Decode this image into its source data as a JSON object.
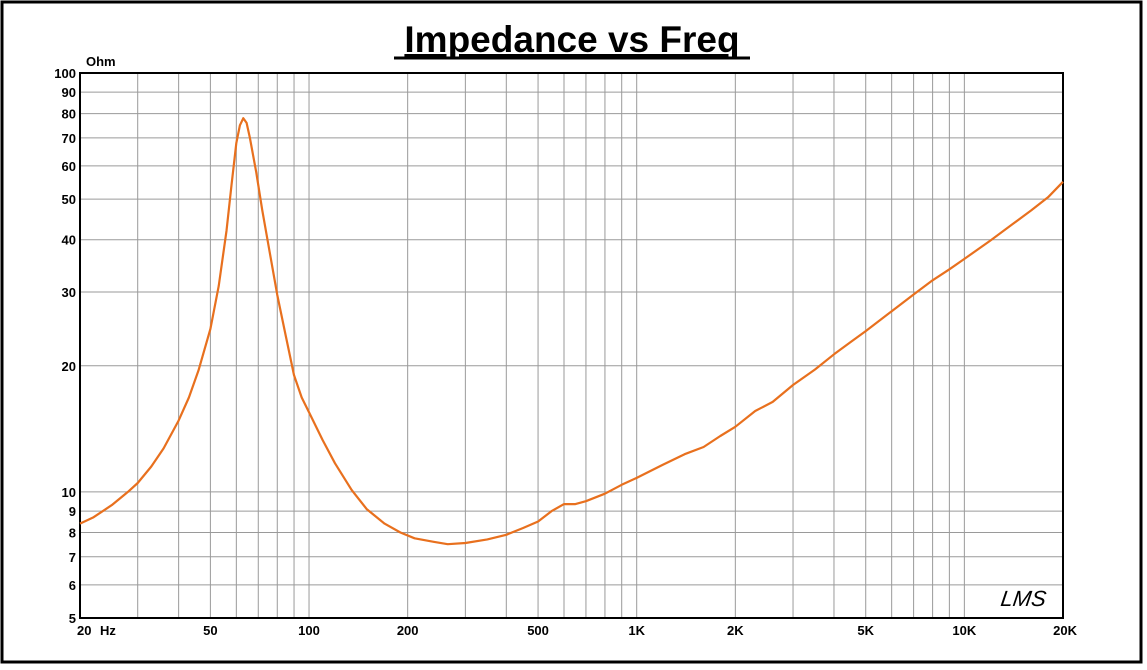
{
  "chart_data": {
    "type": "line",
    "title": "Impedance vs Freq",
    "ylabel": "Ohm",
    "xlabel": "",
    "x_unit_label": "Hz",
    "x_scale": "log",
    "y_scale": "log",
    "xlim": [
      20,
      20000
    ],
    "ylim": [
      5,
      100
    ],
    "grid": true,
    "x_ticks": [
      {
        "value": 20,
        "label": "20"
      },
      {
        "value": 50,
        "label": "50"
      },
      {
        "value": 100,
        "label": "100"
      },
      {
        "value": 200,
        "label": "200"
      },
      {
        "value": 500,
        "label": "500"
      },
      {
        "value": 1000,
        "label": "1K"
      },
      {
        "value": 2000,
        "label": "2K"
      },
      {
        "value": 5000,
        "label": "5K"
      },
      {
        "value": 10000,
        "label": "10K"
      },
      {
        "value": 20000,
        "label": "20K"
      }
    ],
    "x_gridlines": [
      20,
      30,
      40,
      50,
      60,
      70,
      80,
      90,
      100,
      200,
      300,
      400,
      500,
      600,
      700,
      800,
      900,
      1000,
      2000,
      3000,
      4000,
      5000,
      6000,
      7000,
      8000,
      9000,
      10000,
      20000
    ],
    "y_ticks": [
      {
        "value": 5,
        "label": "5"
      },
      {
        "value": 6,
        "label": "6"
      },
      {
        "value": 7,
        "label": "7"
      },
      {
        "value": 8,
        "label": "8"
      },
      {
        "value": 9,
        "label": "9"
      },
      {
        "value": 10,
        "label": "10"
      },
      {
        "value": 20,
        "label": "20"
      },
      {
        "value": 30,
        "label": "30"
      },
      {
        "value": 40,
        "label": "40"
      },
      {
        "value": 50,
        "label": "50"
      },
      {
        "value": 60,
        "label": "60"
      },
      {
        "value": 70,
        "label": "70"
      },
      {
        "value": 80,
        "label": "80"
      },
      {
        "value": 90,
        "label": "90"
      },
      {
        "value": 100,
        "label": "100"
      }
    ],
    "series": [
      {
        "color": "#e8701e",
        "points": [
          [
            20,
            8.4
          ],
          [
            22,
            8.7
          ],
          [
            25,
            9.3
          ],
          [
            28,
            10.0
          ],
          [
            30,
            10.5
          ],
          [
            33,
            11.5
          ],
          [
            36,
            12.7
          ],
          [
            40,
            14.8
          ],
          [
            43,
            16.8
          ],
          [
            46,
            19.5
          ],
          [
            50,
            24.5
          ],
          [
            53,
            31.0
          ],
          [
            56,
            42.0
          ],
          [
            58,
            54.0
          ],
          [
            60,
            68.0
          ],
          [
            61.5,
            75.0
          ],
          [
            63,
            78.0
          ],
          [
            64.5,
            76.0
          ],
          [
            66,
            70.0
          ],
          [
            69,
            58.0
          ],
          [
            72,
            47.0
          ],
          [
            76,
            37.0
          ],
          [
            80,
            29.5
          ],
          [
            85,
            23.5
          ],
          [
            90,
            19.0
          ],
          [
            95,
            16.8
          ],
          [
            100,
            15.5
          ],
          [
            110,
            13.3
          ],
          [
            120,
            11.7
          ],
          [
            135,
            10.1
          ],
          [
            150,
            9.1
          ],
          [
            170,
            8.4
          ],
          [
            190,
            8.0
          ],
          [
            210,
            7.75
          ],
          [
            240,
            7.6
          ],
          [
            265,
            7.5
          ],
          [
            300,
            7.55
          ],
          [
            350,
            7.7
          ],
          [
            400,
            7.9
          ],
          [
            450,
            8.2
          ],
          [
            500,
            8.5
          ],
          [
            550,
            9.0
          ],
          [
            600,
            9.35
          ],
          [
            650,
            9.35
          ],
          [
            700,
            9.5
          ],
          [
            800,
            9.9
          ],
          [
            900,
            10.4
          ],
          [
            1000,
            10.8
          ],
          [
            1200,
            11.6
          ],
          [
            1400,
            12.3
          ],
          [
            1600,
            12.8
          ],
          [
            1800,
            13.6
          ],
          [
            2000,
            14.3
          ],
          [
            2300,
            15.6
          ],
          [
            2600,
            16.4
          ],
          [
            3000,
            18.0
          ],
          [
            3500,
            19.6
          ],
          [
            4000,
            21.3
          ],
          [
            4500,
            22.8
          ],
          [
            5000,
            24.2
          ],
          [
            6000,
            27.0
          ],
          [
            7000,
            29.6
          ],
          [
            8000,
            32.0
          ],
          [
            9000,
            34.0
          ],
          [
            10000,
            36.0
          ],
          [
            12000,
            39.8
          ],
          [
            14000,
            43.5
          ],
          [
            16000,
            47.0
          ],
          [
            18000,
            50.5
          ],
          [
            20000,
            55.0
          ]
        ]
      }
    ]
  },
  "watermark_text": "LMS"
}
